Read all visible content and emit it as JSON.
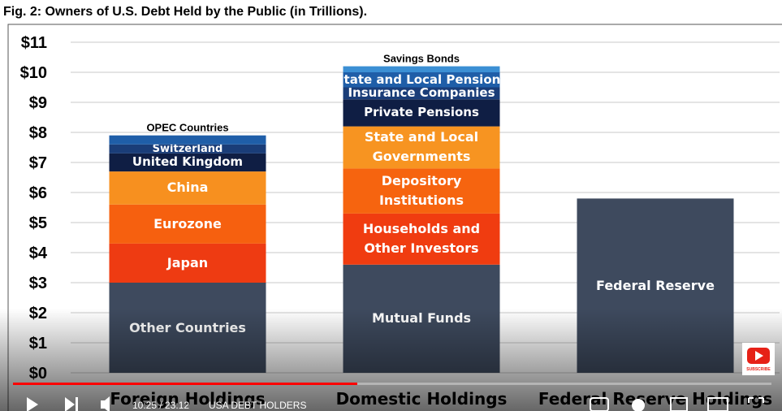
{
  "chart_data": {
    "type": "stacked_bar",
    "title": "Fig. 2: Owners of U.S. Debt Held by the Public (in Trillions).",
    "categories": [
      "Foreign Holdings",
      "Domestic Holdings",
      "Federal Reserve Holdings"
    ],
    "bars": [
      {
        "segments": [
          {
            "name": "Other Countries",
            "color": "#3e4a5e",
            "value": 3.0
          },
          {
            "name": "Japan",
            "color": "#ee3b12",
            "value": 1.3
          },
          {
            "name": "Eurozone",
            "color": "#f6600f",
            "value": 1.3
          },
          {
            "name": "China",
            "color": "#f7901f",
            "value": 1.1
          },
          {
            "name": "United Kingdom",
            "color": "#0f1e44",
            "value": 0.6
          },
          {
            "name": "Switzerland",
            "color": "#1a3d78",
            "value": 0.3
          },
          {
            "name": "OPEC Countries",
            "color": "#1f5ea8",
            "value": 0.3
          }
        ]
      },
      {
        "segments": [
          {
            "name": "Mutual Funds",
            "color": "#3e4a5e",
            "value": 3.6
          },
          {
            "name": "Households and Other Investors",
            "color": "#f03c10",
            "value": 1.7
          },
          {
            "name": "Depository Institutions",
            "color": "#f6640f",
            "value": 1.5
          },
          {
            "name": "State and Local Governments",
            "color": "#f79421",
            "value": 1.4
          },
          {
            "name": "Private Pensions",
            "color": "#0f1e44",
            "value": 0.9
          },
          {
            "name": "Insurance Companies",
            "color": "#1a3d78",
            "value": 0.4
          },
          {
            "name": "State and Local Pensions",
            "color": "#1f5ea8",
            "value": 0.5
          },
          {
            "name": "Savings Bonds",
            "color": "#3b8fd4",
            "value": 0.2
          }
        ]
      },
      {
        "segments": [
          {
            "name": "Federal Reserve",
            "color": "#3e4a5e",
            "value": 5.8
          }
        ]
      }
    ],
    "ylim": [
      0,
      11
    ],
    "yticks": [
      {
        "value": 0,
        "label": "$0"
      },
      {
        "value": 1,
        "label": "$1"
      },
      {
        "value": 2,
        "label": "$2"
      },
      {
        "value": 3,
        "label": "$3"
      },
      {
        "value": 4,
        "label": "$4"
      },
      {
        "value": 5,
        "label": "$5"
      },
      {
        "value": 6,
        "label": "$6"
      },
      {
        "value": 7,
        "label": "$7"
      },
      {
        "value": 8,
        "label": "$8"
      },
      {
        "value": 9,
        "label": "$9"
      },
      {
        "value": 10,
        "label": "$10"
      },
      {
        "value": 11,
        "label": "$11"
      }
    ],
    "grid": true
  },
  "player": {
    "time": "10:25 / 23:12",
    "chapter": "USA DEBT HOLDERS",
    "subscribe": "SUBSCRIBE"
  }
}
